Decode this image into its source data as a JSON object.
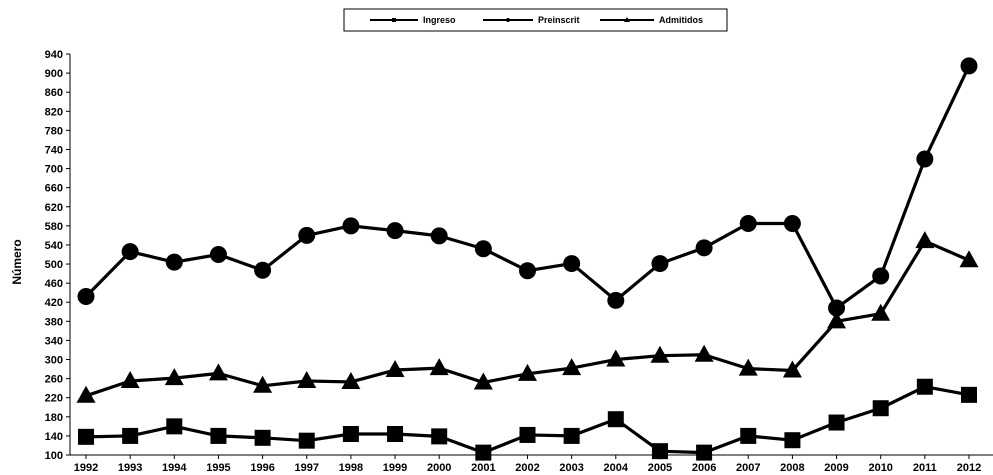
{
  "chart_data": {
    "type": "line",
    "title": "",
    "xlabel": "",
    "ylabel": "Número",
    "ylim": [
      100,
      940
    ],
    "yticks": [
      100,
      140,
      180,
      220,
      260,
      300,
      340,
      380,
      420,
      460,
      500,
      540,
      580,
      620,
      660,
      700,
      740,
      780,
      820,
      860,
      900,
      940
    ],
    "categories": [
      "1992",
      "1993",
      "1994",
      "1995",
      "1996",
      "1997",
      "1998",
      "1999",
      "2000",
      "2001",
      "2002",
      "2003",
      "2004",
      "2005",
      "2006",
      "2007",
      "2008",
      "2009",
      "2010",
      "2011",
      "2012"
    ],
    "legend_position": "top-center",
    "series": [
      {
        "name": "Ingreso",
        "marker": "square",
        "values": [
          138,
          140,
          160,
          140,
          136,
          130,
          144,
          144,
          139,
          105,
          142,
          140,
          175,
          108,
          105,
          140,
          131,
          168,
          198,
          243,
          226
        ]
      },
      {
        "name": "Preinscrit",
        "marker": "circle",
        "values": [
          432,
          526,
          504,
          520,
          487,
          560,
          580,
          570,
          559,
          532,
          486,
          501,
          424,
          501,
          534,
          585,
          585,
          408,
          475,
          720,
          915
        ]
      },
      {
        "name": "Admitidos",
        "marker": "triangle",
        "values": [
          224,
          255,
          261,
          271,
          245,
          255,
          253,
          278,
          282,
          252,
          270,
          282,
          300,
          308,
          310,
          281,
          277,
          380,
          396,
          548,
          508
        ]
      }
    ]
  }
}
